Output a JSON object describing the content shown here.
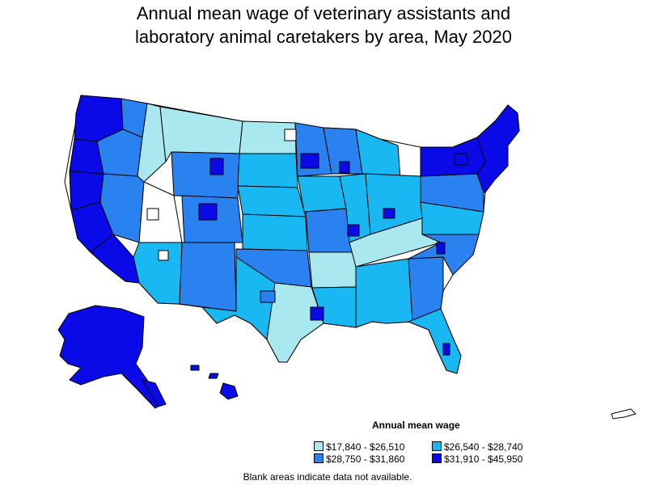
{
  "title_line1": "Annual mean wage of veterinary assistants and",
  "title_line2": "laboratory animal caretakers by area, May 2020",
  "legend": {
    "title": "Annual mean wage",
    "items": [
      {
        "label": "$17,840 - $26,510",
        "color": "#a8e8ee"
      },
      {
        "label": "$26,540 - $28,740",
        "color": "#1ab8f2"
      },
      {
        "label": "$28,750 - $31,860",
        "color": "#2a82f0"
      },
      {
        "label": "$31,910 - $45,950",
        "color": "#0a0ae8"
      }
    ]
  },
  "note": "Blank areas indicate data not available.",
  "colors": {
    "tier1": "#a8e8ee",
    "tier2": "#1ab8f2",
    "tier3": "#2a82f0",
    "tier4": "#0a0ae8",
    "no_data": "#ffffff",
    "border": "#000000"
  }
}
